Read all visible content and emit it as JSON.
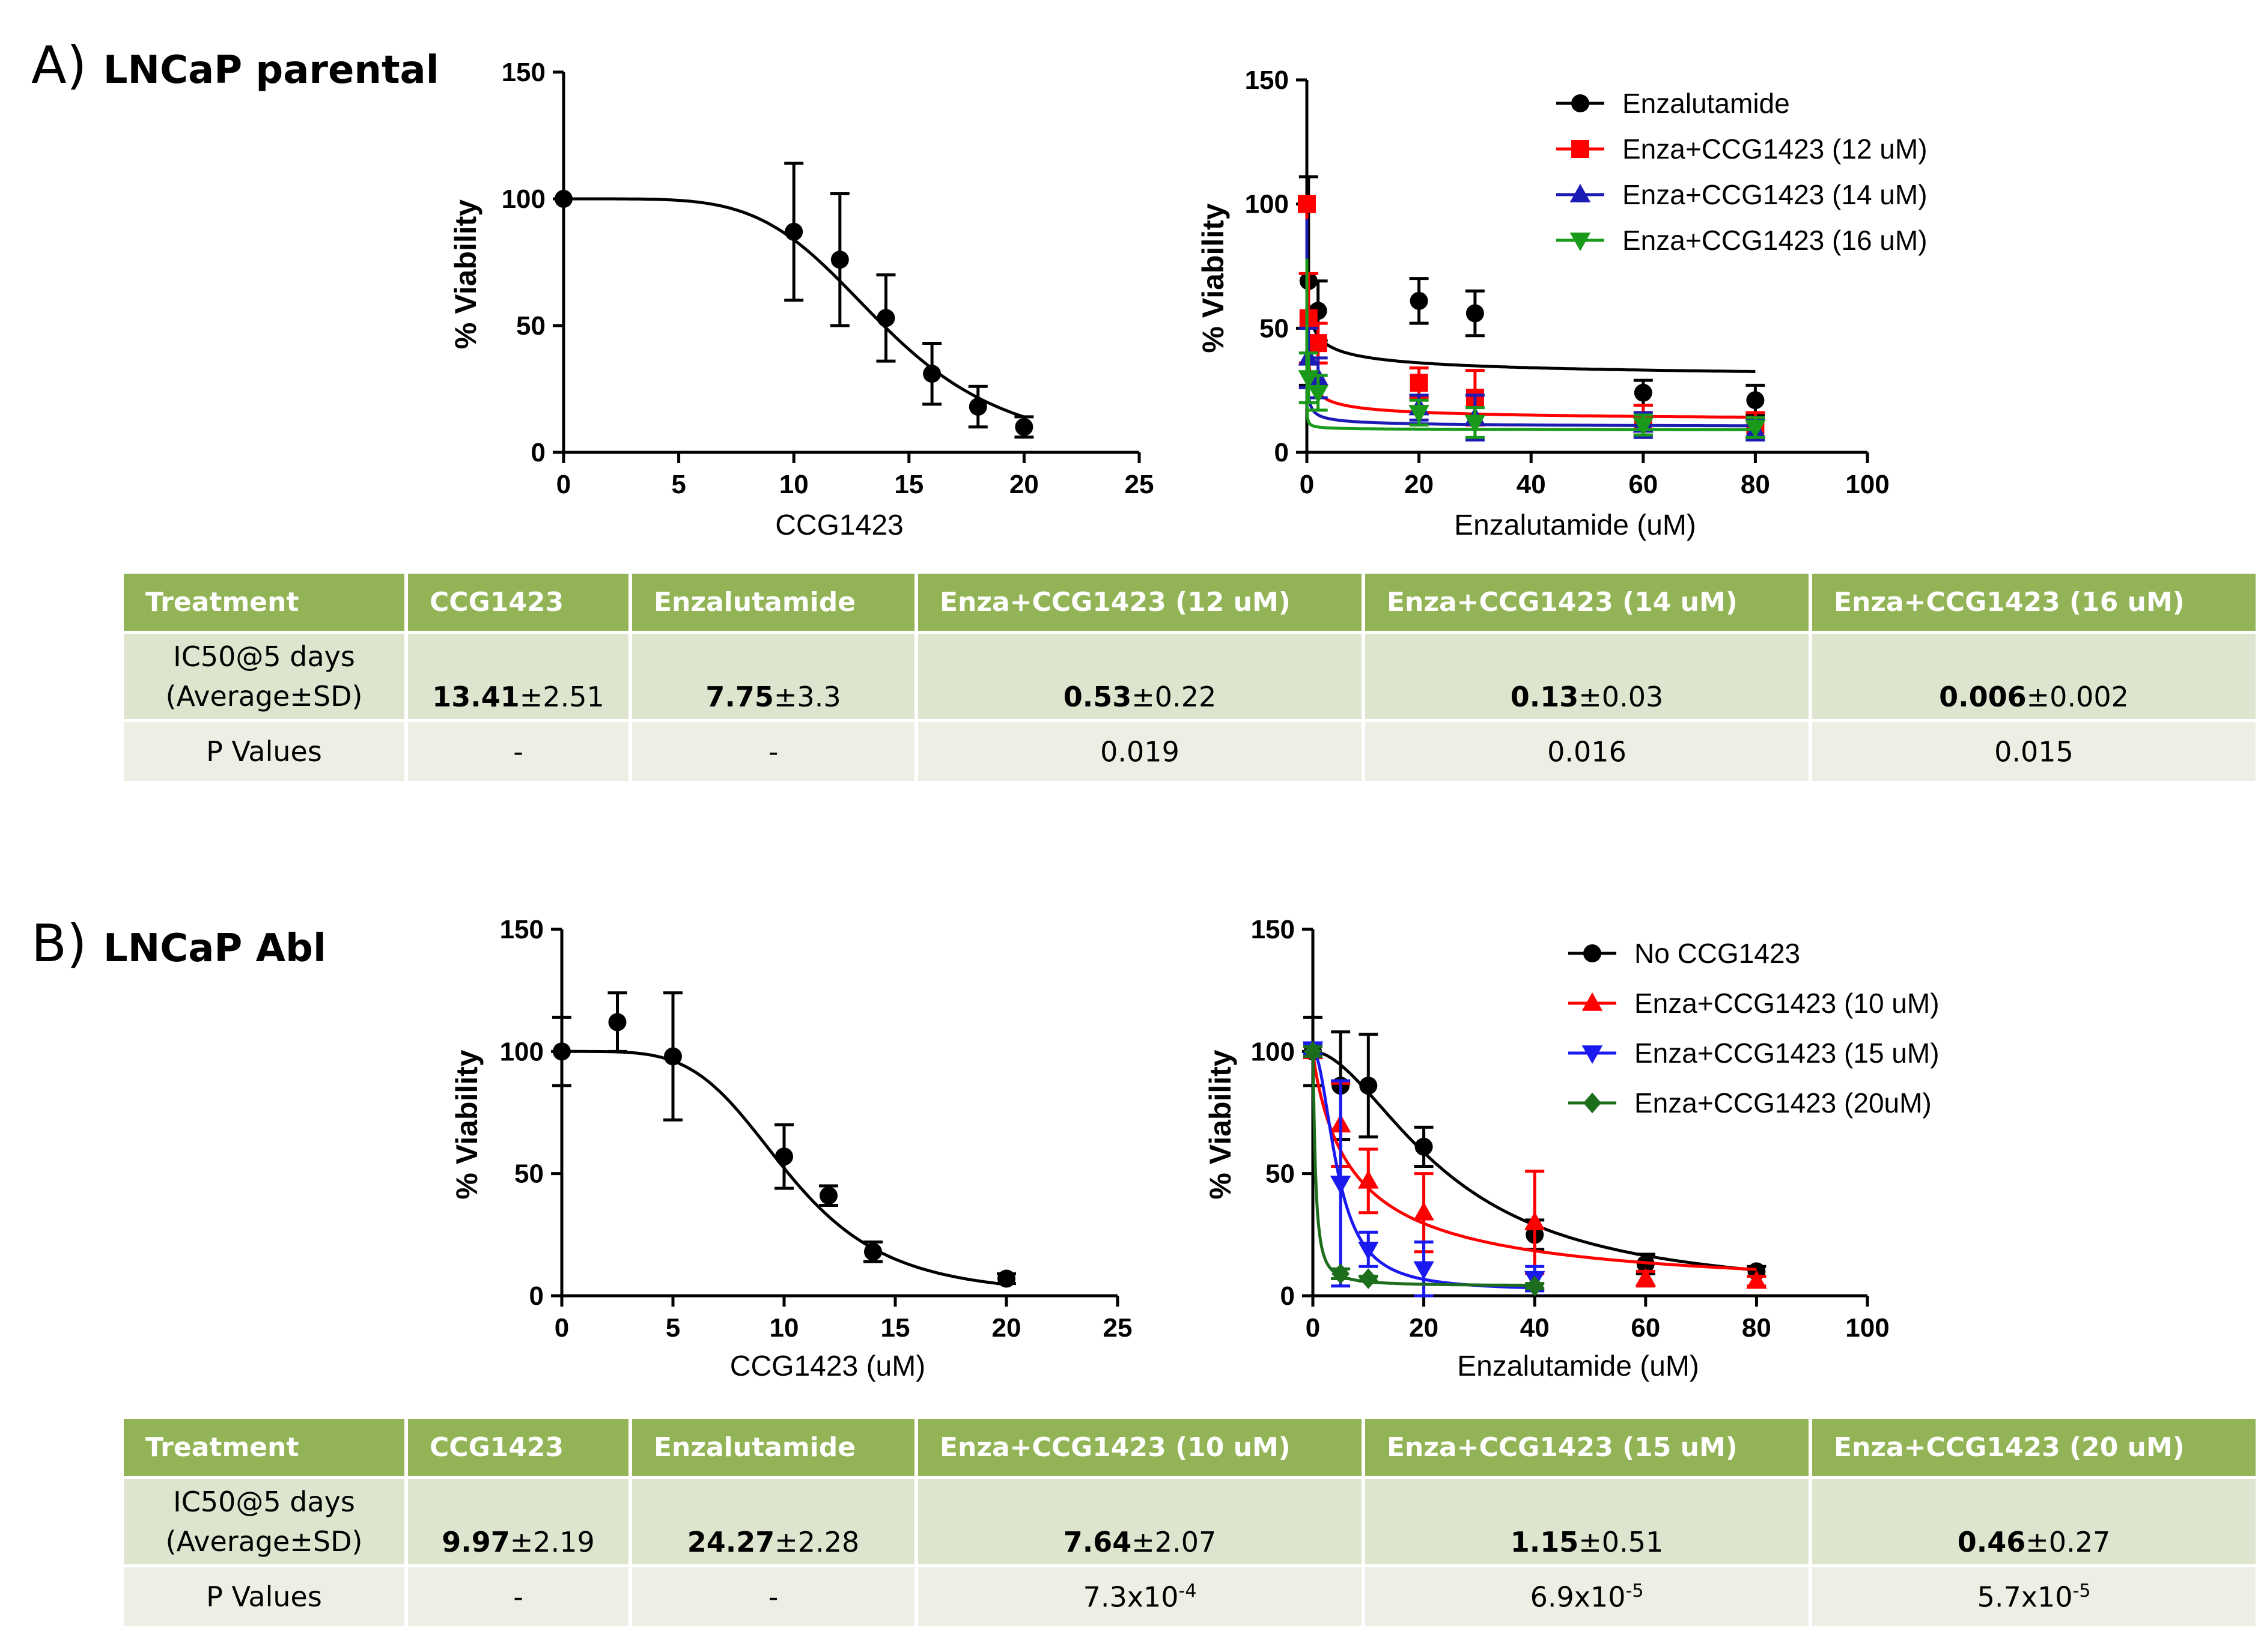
{
  "panel_a": {
    "letter": "A)",
    "title": "LNCaP parental",
    "table": {
      "headers": [
        "Treatment",
        "CCG1423",
        "Enzalutamide",
        "Enza+CCG1423 (12 uM)",
        "Enza+CCG1423 (14 uM)",
        "Enza+CCG1423 (16 uM)"
      ],
      "ic50_label_1": "IC50@5 days",
      "ic50_label_2": "(Average±SD)",
      "ic50": [
        {
          "mean": "13.41",
          "sd": "±2.51"
        },
        {
          "mean": "7.75",
          "sd": "±3.3"
        },
        {
          "mean": "0.53",
          "sd": "±0.22"
        },
        {
          "mean": "0.13",
          "sd": "±0.03"
        },
        {
          "mean": "0.006",
          "sd": "±0.002"
        }
      ],
      "p_label": "P Values",
      "p_values": [
        {
          "base": "-",
          "exp": ""
        },
        {
          "base": "-",
          "exp": ""
        },
        {
          "base": "0.019",
          "exp": ""
        },
        {
          "base": "0.016",
          "exp": ""
        },
        {
          "base": "0.015",
          "exp": ""
        }
      ]
    }
  },
  "panel_b": {
    "letter": "B)",
    "title": "LNCaP Abl",
    "table": {
      "headers": [
        "Treatment",
        "CCG1423",
        "Enzalutamide",
        "Enza+CCG1423 (10 uM)",
        "Enza+CCG1423 (15 uM)",
        "Enza+CCG1423 (20 uM)"
      ],
      "ic50_label_1": "IC50@5 days",
      "ic50_label_2": "(Average±SD)",
      "ic50": [
        {
          "mean": "9.97",
          "sd": "±2.19"
        },
        {
          "mean": "24.27",
          "sd": "±2.28"
        },
        {
          "mean": "7.64",
          "sd": "±2.07"
        },
        {
          "mean": "1.15",
          "sd": "±0.51"
        },
        {
          "mean": "0.46",
          "sd": "±0.27"
        }
      ],
      "p_label": "P Values",
      "p_values": [
        {
          "base": "-",
          "exp": ""
        },
        {
          "base": "-",
          "exp": ""
        },
        {
          "base": "7.3x10",
          "exp": "-4"
        },
        {
          "base": "6.9x10",
          "exp": "-5"
        },
        {
          "base": "5.7x10",
          "exp": "-5"
        }
      ]
    }
  },
  "chart_data": [
    {
      "id": "a1",
      "type": "scatter",
      "title": "",
      "xlabel": "CCG1423",
      "ylabel": "% Viability",
      "xlim": [
        0,
        25
      ],
      "ylim": [
        0,
        150
      ],
      "xticks": [
        "0",
        "5",
        "10",
        "15",
        "20",
        "25"
      ],
      "yticks": [
        "0",
        "50",
        "100",
        "150"
      ],
      "legend": [],
      "series": [
        {
          "name": "CCG1423",
          "color": "#000000",
          "marker": "circle",
          "x": [
            0,
            10,
            12,
            14,
            16,
            18,
            20
          ],
          "y": [
            100,
            87,
            76,
            53,
            31,
            18,
            10
          ],
          "err": [
            0,
            27,
            26,
            17,
            12,
            8,
            4
          ],
          "fit": {
            "top": 100,
            "bottom": 0,
            "ic50": 13.9,
            "hill": 5
          }
        }
      ]
    },
    {
      "id": "a2",
      "type": "scatter",
      "title": "",
      "xlabel": "Enzalutamide (uM)",
      "ylabel": "% Viability",
      "xlim": [
        0,
        100
      ],
      "ylim": [
        0,
        150
      ],
      "xticks": [
        "0",
        "20",
        "40",
        "60",
        "80",
        "100"
      ],
      "yticks": [
        "0",
        "50",
        "100",
        "150"
      ],
      "legend": [
        "Enzalutamide",
        "Enza+CCG1423 (12 uM)",
        "Enza+CCG1423 (14 uM)",
        "Enza+CCG1423 (16 uM)"
      ],
      "legend_position": "top-right",
      "series": [
        {
          "name": "Enzalutamide",
          "color": "#000000",
          "marker": "circle",
          "x": [
            0,
            0.3,
            2,
            20,
            30,
            60,
            80
          ],
          "y": [
            100,
            69,
            57,
            61,
            56,
            24,
            21
          ],
          "err": [
            0,
            42,
            12,
            9,
            9,
            5,
            6
          ],
          "fit": {
            "top": 100,
            "bottom": 28,
            "ic50": 0.2,
            "hill": 0.45
          }
        },
        {
          "name": "Enza+CCG1423 (12 uM)",
          "color": "#ff0000",
          "marker": "square",
          "x": [
            0,
            0.3,
            2,
            20,
            30,
            60,
            80
          ],
          "y": [
            100,
            54,
            44,
            28,
            22,
            13,
            11
          ],
          "err": [
            0,
            18,
            8,
            6,
            11,
            6,
            5
          ],
          "fit": {
            "top": 100,
            "bottom": 12,
            "ic50": 0.05,
            "hill": 0.5
          }
        },
        {
          "name": "Enza+CCG1423 (14 uM)",
          "color": "#1c1cb4",
          "marker": "triangle-up",
          "x": [
            0.3,
            2,
            20,
            30,
            60,
            80
          ],
          "y": [
            38,
            30,
            18,
            14,
            11,
            9
          ],
          "err": [
            12,
            8,
            5,
            9,
            5,
            4
          ],
          "fit": {
            "top": 100,
            "bottom": 10,
            "ic50": 0.012,
            "hill": 0.55
          }
        },
        {
          "name": "Enza+CCG1423 (16 uM)",
          "color": "#1a9a1a",
          "marker": "triangle-down",
          "x": [
            0.3,
            2,
            20,
            30,
            60,
            80
          ],
          "y": [
            30,
            24,
            16,
            12,
            11,
            10
          ],
          "err": [
            10,
            7,
            5,
            6,
            4,
            4
          ],
          "fit": {
            "top": 100,
            "bottom": 9,
            "ic50": 0.0008,
            "hill": 0.55
          }
        }
      ]
    },
    {
      "id": "b1",
      "type": "scatter",
      "title": "",
      "xlabel": "CCG1423 (uM)",
      "ylabel": "% Viability",
      "xlim": [
        0,
        25
      ],
      "ylim": [
        0,
        150
      ],
      "xticks": [
        "0",
        "5",
        "10",
        "15",
        "20",
        "25"
      ],
      "yticks": [
        "0",
        "50",
        "100",
        "150"
      ],
      "legend": [],
      "series": [
        {
          "name": "CCG1423",
          "color": "#000000",
          "marker": "circle",
          "x": [
            0,
            2.5,
            5,
            10,
            12,
            14,
            20
          ],
          "y": [
            100,
            112,
            98,
            57,
            41,
            18,
            7
          ],
          "err": [
            14,
            12,
            26,
            13,
            4,
            4,
            2
          ],
          "fit": {
            "top": 100,
            "bottom": 0,
            "ic50": 10.2,
            "hill": 4.5
          }
        }
      ]
    },
    {
      "id": "b2",
      "type": "scatter",
      "title": "",
      "xlabel": "Enzalutamide (uM)",
      "ylabel": "% Viability",
      "xlim": [
        0,
        100
      ],
      "ylim": [
        0,
        150
      ],
      "xticks": [
        "0",
        "20",
        "40",
        "60",
        "80",
        "100"
      ],
      "yticks": [
        "0",
        "50",
        "100",
        "150"
      ],
      "legend": [
        "No CCG1423",
        "Enza+CCG1423 (10 uM)",
        "Enza+CCG1423 (15 uM)",
        "Enza+CCG1423 (20uM)"
      ],
      "legend_position": "top-right",
      "series": [
        {
          "name": "No CCG1423",
          "color": "#000000",
          "marker": "circle",
          "x": [
            0,
            5,
            10,
            20,
            40,
            60,
            80
          ],
          "y": [
            100,
            86,
            86,
            61,
            25,
            13,
            10
          ],
          "err": [
            14,
            22,
            21,
            8,
            6,
            4,
            2
          ],
          "fit": {
            "top": 100,
            "bottom": 0,
            "ic50": 24.3,
            "hill": 1.8
          }
        },
        {
          "name": "Enza+CCG1423 (10 uM)",
          "color": "#ff0000",
          "marker": "triangle-up",
          "x": [
            0,
            5,
            10,
            20,
            40,
            60,
            80
          ],
          "y": [
            100,
            70,
            47,
            34,
            30,
            7,
            6
          ],
          "err": [
            2,
            17,
            13,
            16,
            21,
            3,
            2
          ],
          "fit": {
            "top": 100,
            "bottom": 0,
            "ic50": 7.64,
            "hill": 0.9
          }
        },
        {
          "name": "Enza+CCG1423 (15 uM)",
          "color": "#1a1af0",
          "marker": "triangle-down",
          "x": [
            0,
            5,
            10,
            20,
            40
          ],
          "y": [
            101,
            46,
            19,
            11,
            7
          ],
          "err": [
            2,
            42,
            7,
            11,
            5
          ],
          "fit": {
            "top": 100,
            "bottom": 2,
            "ic50": 4.5,
            "hill": 2
          }
        },
        {
          "name": "Enza+CCG1423 (20uM)",
          "color": "#1c6e1c",
          "marker": "diamond",
          "x": [
            0,
            5,
            10,
            40
          ],
          "y": [
            100,
            9,
            7,
            4
          ],
          "err": [
            2,
            2,
            1,
            1
          ],
          "fit": {
            "top": 100,
            "bottom": 4,
            "ic50": 0.46,
            "hill": 1.3
          }
        }
      ]
    }
  ]
}
